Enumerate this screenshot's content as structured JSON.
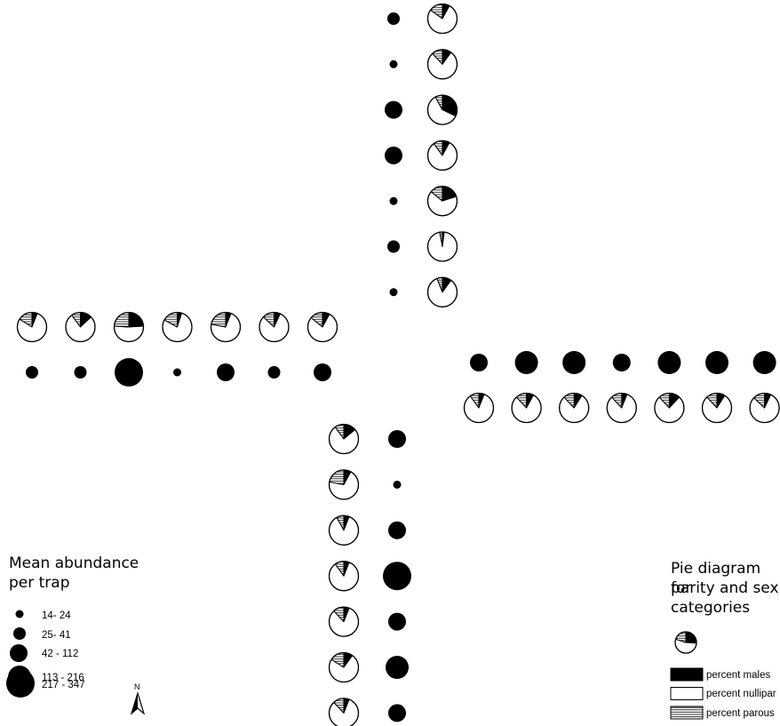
{
  "abundance_legend": {
    "title_line1": "Mean abundance",
    "title_line2": "per trap",
    "classes": [
      {
        "label": "14- 24",
        "min": 14,
        "max": 24
      },
      {
        "label": "25- 41",
        "min": 25,
        "max": 41
      },
      {
        "label": "42 - 112",
        "min": 42,
        "max": 112
      },
      {
        "label": "113 - 216",
        "min": 113,
        "max": 216
      },
      {
        "label": "217 - 347",
        "min": 217,
        "max": 347
      }
    ]
  },
  "pie_legend": {
    "title_line1": "Pie diagram for",
    "title_line2": "parity and sex",
    "title_line3": "categories",
    "categories": [
      {
        "key": "males",
        "label": "percent males",
        "pattern": "solid-black"
      },
      {
        "key": "nullipar",
        "label": "percent nullipar",
        "pattern": "white"
      },
      {
        "key": "parous",
        "label": "percent parous",
        "pattern": "horizontal-lines"
      }
    ]
  },
  "north_arrow": {
    "label": "N"
  },
  "colors": {
    "symbol": "#000000",
    "background": "#ffffff"
  },
  "transects": {
    "north": [
      {
        "class": 1,
        "males": 8,
        "nullipar": 77,
        "parous": 15
      },
      {
        "class": 0,
        "males": 10,
        "nullipar": 78,
        "parous": 12
      },
      {
        "class": 2,
        "males": 32,
        "nullipar": 60,
        "parous": 8
      },
      {
        "class": 2,
        "males": 8,
        "nullipar": 82,
        "parous": 10
      },
      {
        "class": 0,
        "males": 20,
        "nullipar": 66,
        "parous": 14
      },
      {
        "class": 1,
        "males": 2,
        "nullipar": 95,
        "parous": 3
      },
      {
        "class": 0,
        "males": 10,
        "nullipar": 84,
        "parous": 6
      }
    ],
    "west": [
      {
        "class": 1,
        "males": 6,
        "nullipar": 78,
        "parous": 16
      },
      {
        "class": 1,
        "males": 13,
        "nullipar": 77,
        "parous": 10
      },
      {
        "class": 4,
        "males": 24,
        "nullipar": 52,
        "parous": 24
      },
      {
        "class": 0,
        "males": 5,
        "nullipar": 78,
        "parous": 17
      },
      {
        "class": 2,
        "males": 6,
        "nullipar": 72,
        "parous": 22
      },
      {
        "class": 1,
        "males": 7,
        "nullipar": 80,
        "parous": 13
      },
      {
        "class": 2,
        "males": 8,
        "nullipar": 78,
        "parous": 14
      }
    ],
    "east": [
      {
        "class": 2,
        "males": 6,
        "nullipar": 84,
        "parous": 10
      },
      {
        "class": 3,
        "males": 8,
        "nullipar": 80,
        "parous": 12
      },
      {
        "class": 3,
        "males": 9,
        "nullipar": 79,
        "parous": 12
      },
      {
        "class": 2,
        "males": 6,
        "nullipar": 82,
        "parous": 12
      },
      {
        "class": 3,
        "males": 12,
        "nullipar": 76,
        "parous": 12
      },
      {
        "class": 3,
        "males": 9,
        "nullipar": 79,
        "parous": 12
      },
      {
        "class": 3,
        "males": 7,
        "nullipar": 80,
        "parous": 13
      }
    ],
    "south": [
      {
        "class": 2,
        "males": 14,
        "nullipar": 76,
        "parous": 10
      },
      {
        "class": 0,
        "males": 8,
        "nullipar": 70,
        "parous": 22
      },
      {
        "class": 2,
        "males": 6,
        "nullipar": 86,
        "parous": 8
      },
      {
        "class": 4,
        "males": 6,
        "nullipar": 84,
        "parous": 10
      },
      {
        "class": 2,
        "males": 6,
        "nullipar": 82,
        "parous": 12
      },
      {
        "class": 3,
        "males": 10,
        "nullipar": 74,
        "parous": 16
      },
      {
        "class": 2,
        "males": 6,
        "nullipar": 82,
        "parous": 12
      }
    ]
  }
}
